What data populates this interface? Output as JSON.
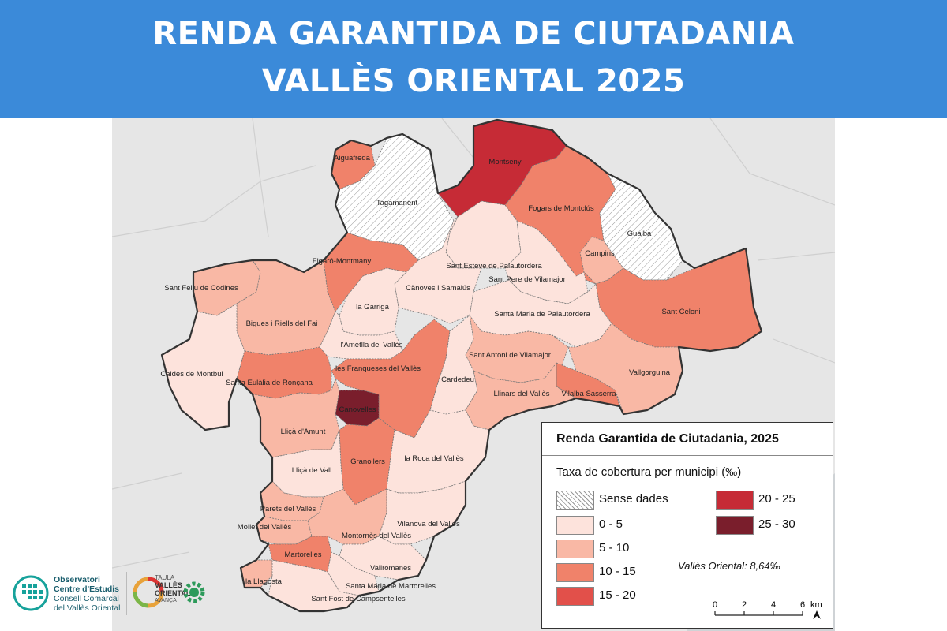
{
  "header": {
    "title_line1": "RENDA GARANTIDA DE CIUTADANIA",
    "title_line2": "VALLÈS ORIENTAL 2025"
  },
  "colors": {
    "header_bg": "#3b8ad9",
    "class_0_5": "#fde3dc",
    "class_5_10": "#f9b8a5",
    "class_10_15": "#f0826a",
    "class_15_20": "#e2504a",
    "class_20_25": "#c62b36",
    "class_25_30": "#7a1e2c"
  },
  "municipalities": [
    {
      "name": "Aiguafreda",
      "class": "10 - 15"
    },
    {
      "name": "Tagamanent",
      "class": "Sense dades"
    },
    {
      "name": "Montseny",
      "class": "20 - 25"
    },
    {
      "name": "Fogars de Montclús",
      "class": "10 - 15"
    },
    {
      "name": "Gualba",
      "class": "Sense dades"
    },
    {
      "name": "Campins",
      "class": "5 - 10"
    },
    {
      "name": "Figaró-Montmany",
      "class": "10 - 15"
    },
    {
      "name": "Sant Esteve de Palautordera",
      "class": "0 - 5"
    },
    {
      "name": "Sant Pere de Vilamajor",
      "class": "0 - 5"
    },
    {
      "name": "Sant Feliu de Codines",
      "class": "5 - 10"
    },
    {
      "name": "Cànoves i Samalús",
      "class": "0 - 5"
    },
    {
      "name": "la Garriga",
      "class": "0 - 5"
    },
    {
      "name": "Santa Maria de Palautordera",
      "class": "0 - 5"
    },
    {
      "name": "Sant Celoni",
      "class": "10 - 15"
    },
    {
      "name": "Bigues i Riells del Fai",
      "class": "5 - 10"
    },
    {
      "name": "l'Ametlla del Vallès",
      "class": "0 - 5"
    },
    {
      "name": "Sant Antoni de Vilamajor",
      "class": "5 - 10"
    },
    {
      "name": "Caldes de Montbui",
      "class": "0 - 5"
    },
    {
      "name": "les Franqueses del Vallès",
      "class": "10 - 15"
    },
    {
      "name": "Vallgorguina",
      "class": "5 - 10"
    },
    {
      "name": "Santa Eulàlia de Ronçana",
      "class": "10 - 15"
    },
    {
      "name": "Cardedeu",
      "class": "0 - 5"
    },
    {
      "name": "Llinars del Vallès",
      "class": "5 - 10"
    },
    {
      "name": "Vilalba Sasserra",
      "class": "10 - 15"
    },
    {
      "name": "Canovelles",
      "class": "25 - 30"
    },
    {
      "name": "Lliçà d'Amunt",
      "class": "5 - 10"
    },
    {
      "name": "Granollers",
      "class": "10 - 15"
    },
    {
      "name": "la Roca del Vallès",
      "class": "0 - 5"
    },
    {
      "name": "Lliçà de Vall",
      "class": "0 - 5"
    },
    {
      "name": "Parets del Vallès",
      "class": "5 - 10"
    },
    {
      "name": "Mollet del Vallès",
      "class": "5 - 10"
    },
    {
      "name": "Vilanova del Vallès",
      "class": "0 - 5"
    },
    {
      "name": "Montornès del Vallès",
      "class": "5 - 10"
    },
    {
      "name": "Martorelles",
      "class": "10 - 15"
    },
    {
      "name": "Vallromanes",
      "class": "0 - 5"
    },
    {
      "name": "la Llagosta",
      "class": "5 - 10"
    },
    {
      "name": "Santa Maria de Martorelles",
      "class": "0 - 5"
    },
    {
      "name": "Sant Fost de Campsentelles",
      "class": "0 - 5"
    }
  ],
  "legend": {
    "title": "Renda Garantida de Ciutadania, 2025",
    "subtitle": "Taxa de cobertura per municipi (‰)",
    "classes": [
      {
        "label": "Sense dades",
        "color": "hatched"
      },
      {
        "label": "0 - 5",
        "color": "#fde3dc"
      },
      {
        "label": "5 - 10",
        "color": "#f9b8a5"
      },
      {
        "label": "10 - 15",
        "color": "#f0826a"
      },
      {
        "label": "15 - 20",
        "color": "#e2504a"
      },
      {
        "label": "20 - 25",
        "color": "#c62b36"
      },
      {
        "label": "25 - 30",
        "color": "#7a1e2c"
      }
    ],
    "average": "Vallès Oriental: 8,64‰",
    "scale": {
      "ticks": [
        "0",
        "2",
        "4",
        "6"
      ],
      "unit": "km"
    },
    "north_icon": "north-arrow-icon"
  },
  "logos": {
    "observatori_line1": "Observatori",
    "observatori_line2": "Centre d'Estudis",
    "observatori_line3": "Consell Comarcal",
    "observatori_line4": "del Vallès Oriental",
    "taula_line1": "TAULA",
    "taula_line2": "VALLÈS",
    "taula_line3": "ORIENTAL",
    "taula_line4": "AVANÇA"
  }
}
